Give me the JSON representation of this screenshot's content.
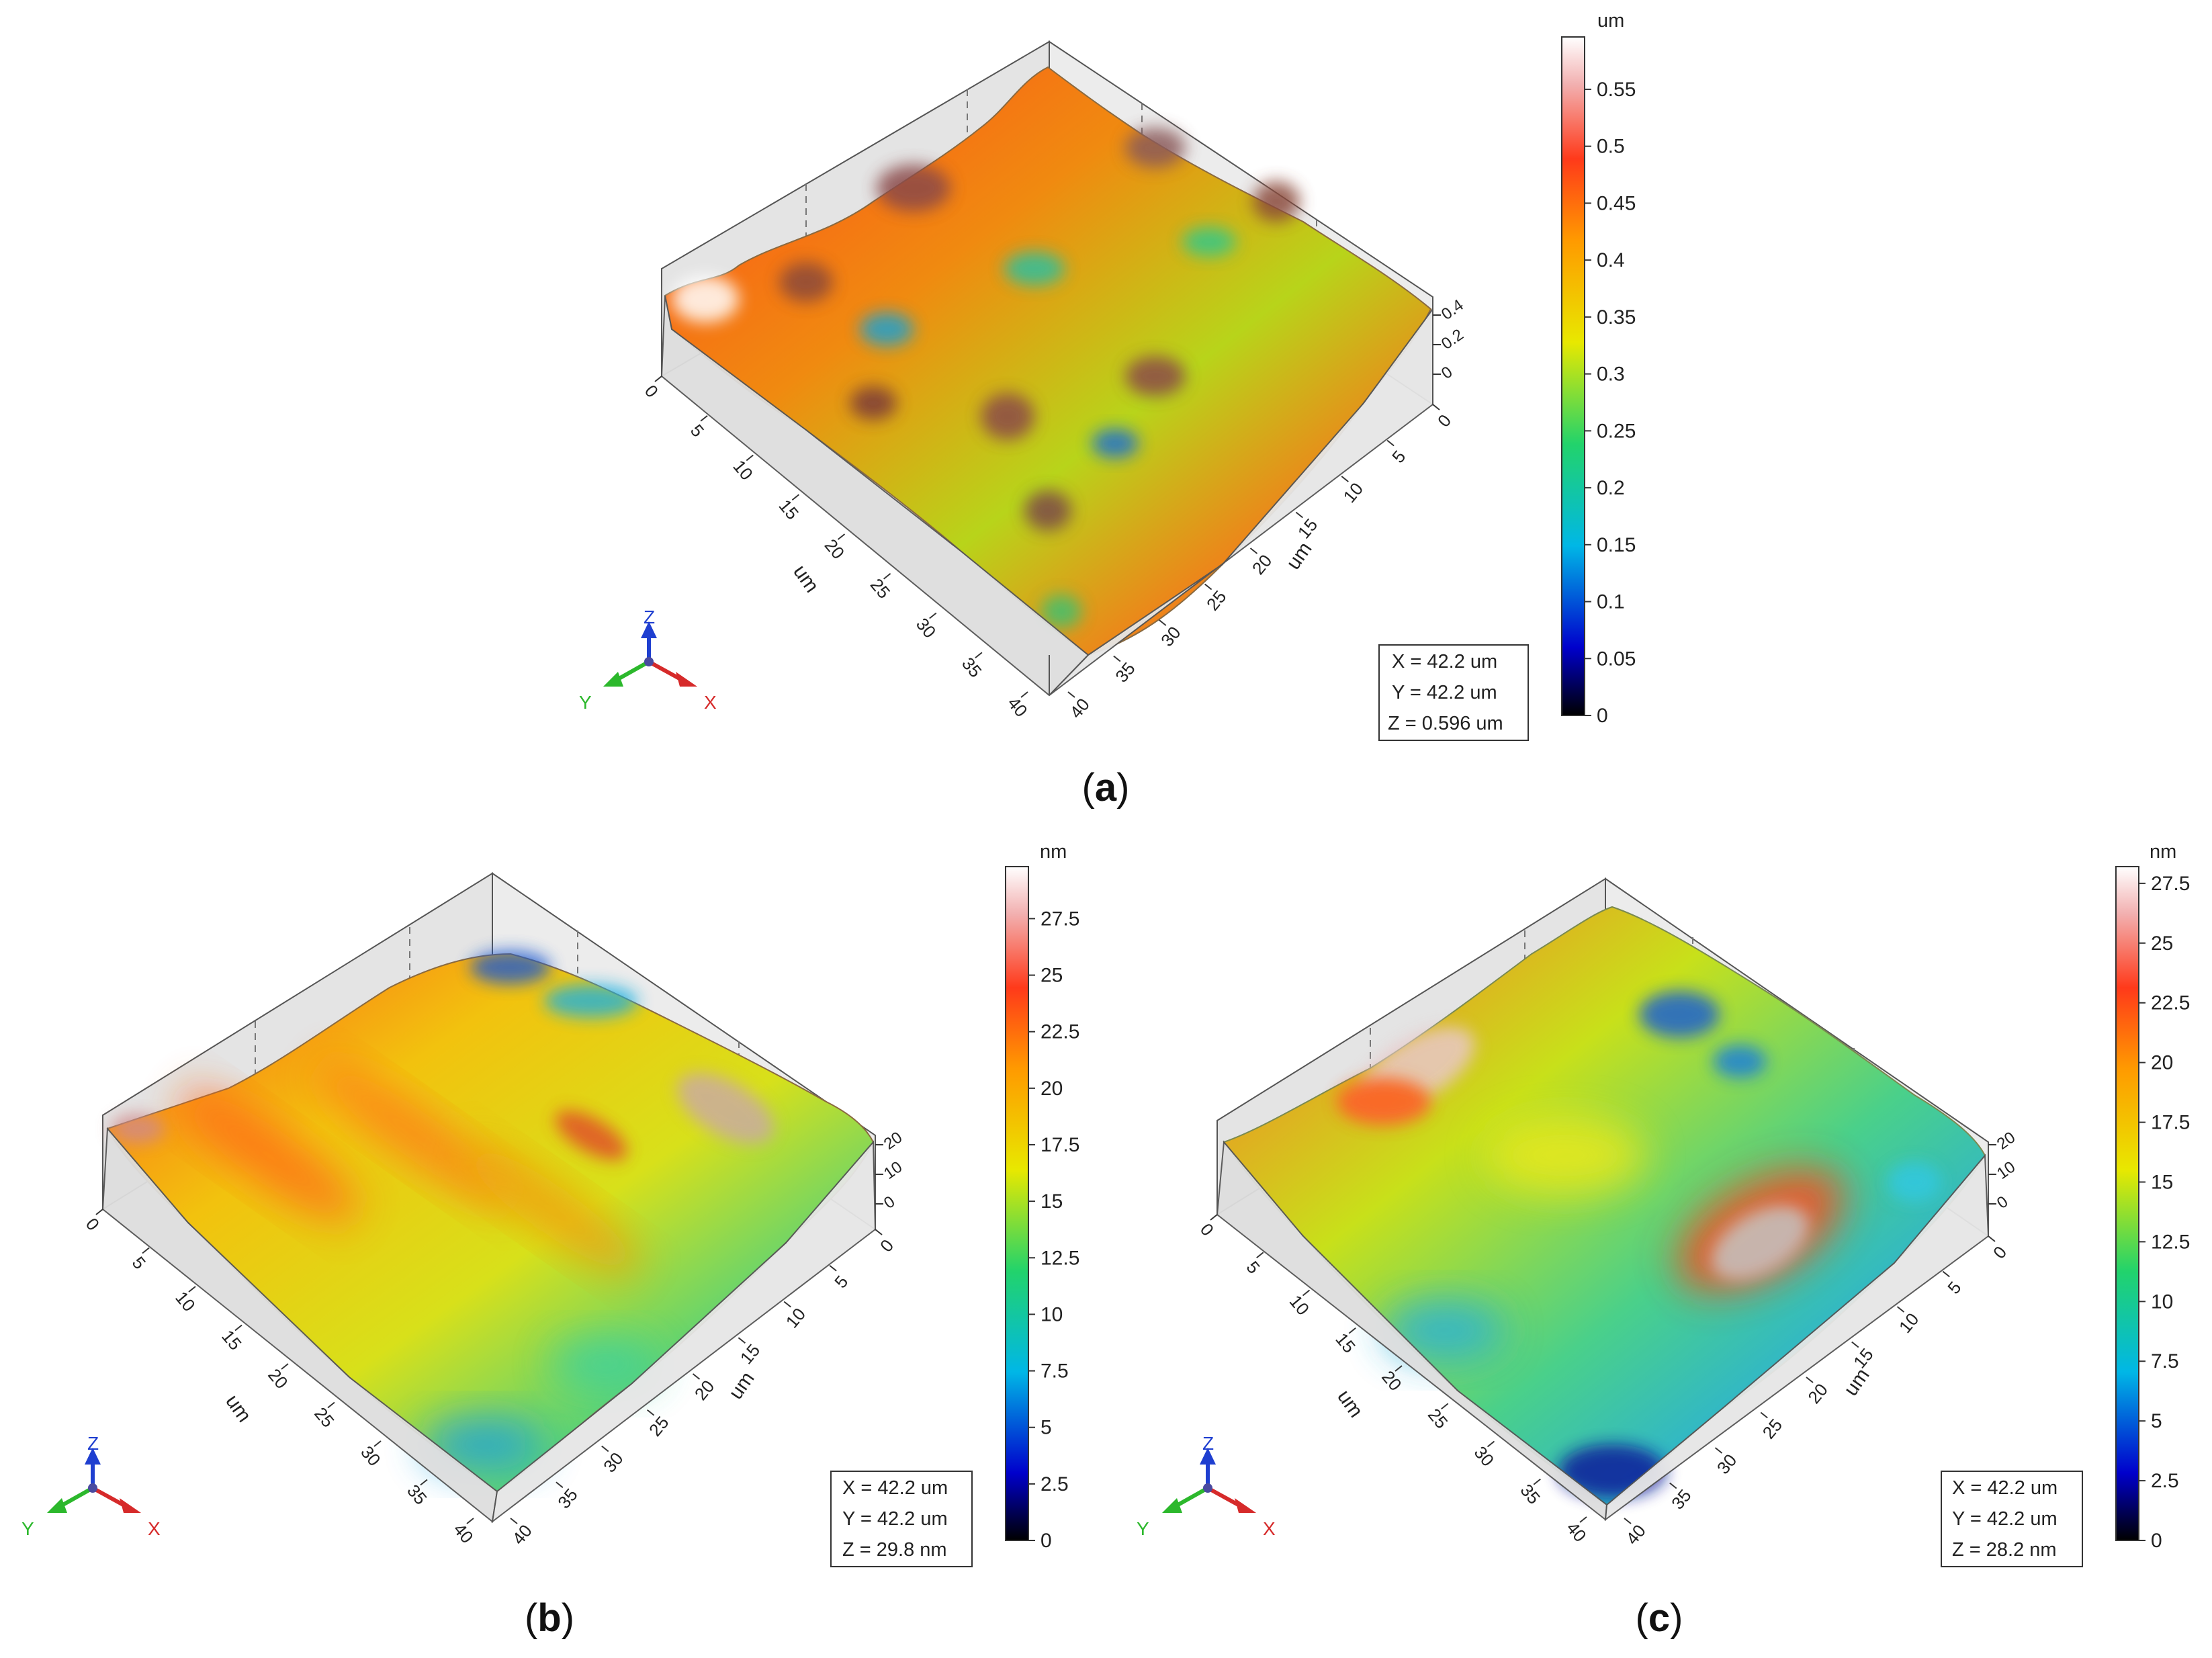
{
  "figure": {
    "colors": {
      "background": "#ffffff",
      "wall": "#e4e4e4",
      "axis_line": "#555555",
      "dashed_grid": "#777777",
      "info_border": "#333333",
      "text": "#222222",
      "z_arrow": "#1f3fd0",
      "y_arrow": "#2cb82c",
      "x_arrow": "#d62a2a",
      "colorbar_stops": [
        "#000000",
        "#0000cc",
        "#00b7e6",
        "#22d36b",
        "#e8e800",
        "#ff9a00",
        "#ff3a1a",
        "#f2b0b0",
        "#ffffff"
      ]
    },
    "panels": [
      {
        "id": "a",
        "caption_letter": "a",
        "caption_open": "(",
        "caption_close": ")",
        "x_ticks": [
          "0",
          "5",
          "10",
          "15",
          "20",
          "25",
          "30",
          "35",
          "40"
        ],
        "y_ticks": [
          "0",
          "5",
          "10",
          "15",
          "20",
          "25",
          "30",
          "35",
          "40"
        ],
        "x_axis_label": "um",
        "y_axis_label": "um",
        "z_ticks": [
          "0.4",
          "0.2",
          "0"
        ],
        "colorbar_unit": "um",
        "colorbar_ticks": [
          "0.55",
          "0.5",
          "0.45",
          "0.4",
          "0.35",
          "0.3",
          "0.25",
          "0.2",
          "0.15",
          "0.1",
          "0.05",
          "0"
        ],
        "colorbar_max": 0.596,
        "info_lines": [
          "X = 42.2 um",
          "Y = 42.2 um",
          "Z = 0.596 um"
        ],
        "triad": {
          "z": "Z",
          "y": "Y",
          "x": "X"
        },
        "surface_description": "dense hilly topography, peaks red-white, valleys blue-green"
      },
      {
        "id": "b",
        "caption_letter": "b",
        "caption_open": "(",
        "caption_close": ")",
        "x_ticks": [
          "0",
          "5",
          "10",
          "15",
          "20",
          "25",
          "30",
          "35",
          "40"
        ],
        "y_ticks": [
          "0",
          "5",
          "10",
          "15",
          "20",
          "25",
          "30",
          "35",
          "40"
        ],
        "x_axis_label": "um",
        "y_axis_label": "um",
        "z_ticks": [
          "20",
          "10",
          "0"
        ],
        "colorbar_unit": "nm",
        "colorbar_ticks": [
          "27.5",
          "25",
          "22.5",
          "20",
          "17.5",
          "15",
          "12.5",
          "10",
          "7.5",
          "5",
          "2.5",
          "0"
        ],
        "colorbar_max": 29.8,
        "info_lines": [
          "X = 42.2 um",
          "Y = 42.2 um",
          "Z = 29.8 nm"
        ],
        "triad": {
          "z": "Z",
          "y": "Y",
          "x": "X"
        },
        "surface_description": "diagonal ridges, orange-yellow with blue-green lows"
      },
      {
        "id": "c",
        "caption_letter": "c",
        "caption_open": "(",
        "caption_close": ")",
        "x_ticks": [
          "0",
          "5",
          "10",
          "15",
          "20",
          "25",
          "30",
          "35",
          "40"
        ],
        "y_ticks": [
          "0",
          "5",
          "10",
          "15",
          "20",
          "25",
          "30",
          "35",
          "40"
        ],
        "x_axis_label": "um",
        "y_axis_label": "um",
        "z_ticks": [
          "20",
          "10",
          "0"
        ],
        "colorbar_unit": "nm",
        "colorbar_ticks": [
          "27.5",
          "25",
          "22.5",
          "20",
          "17.5",
          "15",
          "12.5",
          "10",
          "7.5",
          "5",
          "2.5",
          "0"
        ],
        "colorbar_max": 28.2,
        "info_lines": [
          "X = 42.2 um",
          "Y = 42.2 um",
          "Z = 28.2 nm"
        ],
        "triad": {
          "z": "Z",
          "y": "Y",
          "x": "X"
        },
        "surface_description": "gentle surface, red-white raised zones, blue depressions"
      }
    ]
  }
}
